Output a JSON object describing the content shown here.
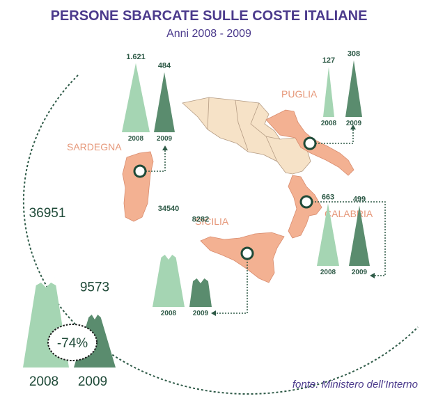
{
  "title": "PERSONE SBARCATE SULLE COSTE ITALIANE",
  "subtitle": "Anni 2008 - 2009",
  "source": "fonte: Ministero dell’Interno",
  "colors": {
    "c2008": "#a5d5b3",
    "c2009": "#5a8c6e",
    "title": "#4b3a8c",
    "region": "#e6987a",
    "land_highlight": "#f3b192",
    "land_other": "#f6e2c7"
  },
  "chart_data": {
    "type": "bar",
    "title": "PERSONE SBARCATE SULLE COSTE ITALIANE",
    "subtitle": "Anni 2008 - 2009",
    "categories": [
      "2008",
      "2009"
    ],
    "total": {
      "values": [
        36951,
        9573
      ],
      "labels": [
        "36951",
        "9573"
      ],
      "change_label": "-74%"
    },
    "regions": [
      {
        "name": "SARDEGNA",
        "values": [
          1621,
          484
        ],
        "labels": [
          "1.621",
          "484"
        ]
      },
      {
        "name": "SICILIA",
        "values": [
          34540,
          8282
        ],
        "labels": [
          "34540",
          "8282"
        ]
      },
      {
        "name": "PUGLIA",
        "values": [
          127,
          308
        ],
        "labels": [
          "127",
          "308"
        ]
      },
      {
        "name": "CALABRIA",
        "values": [
          663,
          499
        ],
        "labels": [
          "663",
          "499"
        ]
      }
    ]
  }
}
